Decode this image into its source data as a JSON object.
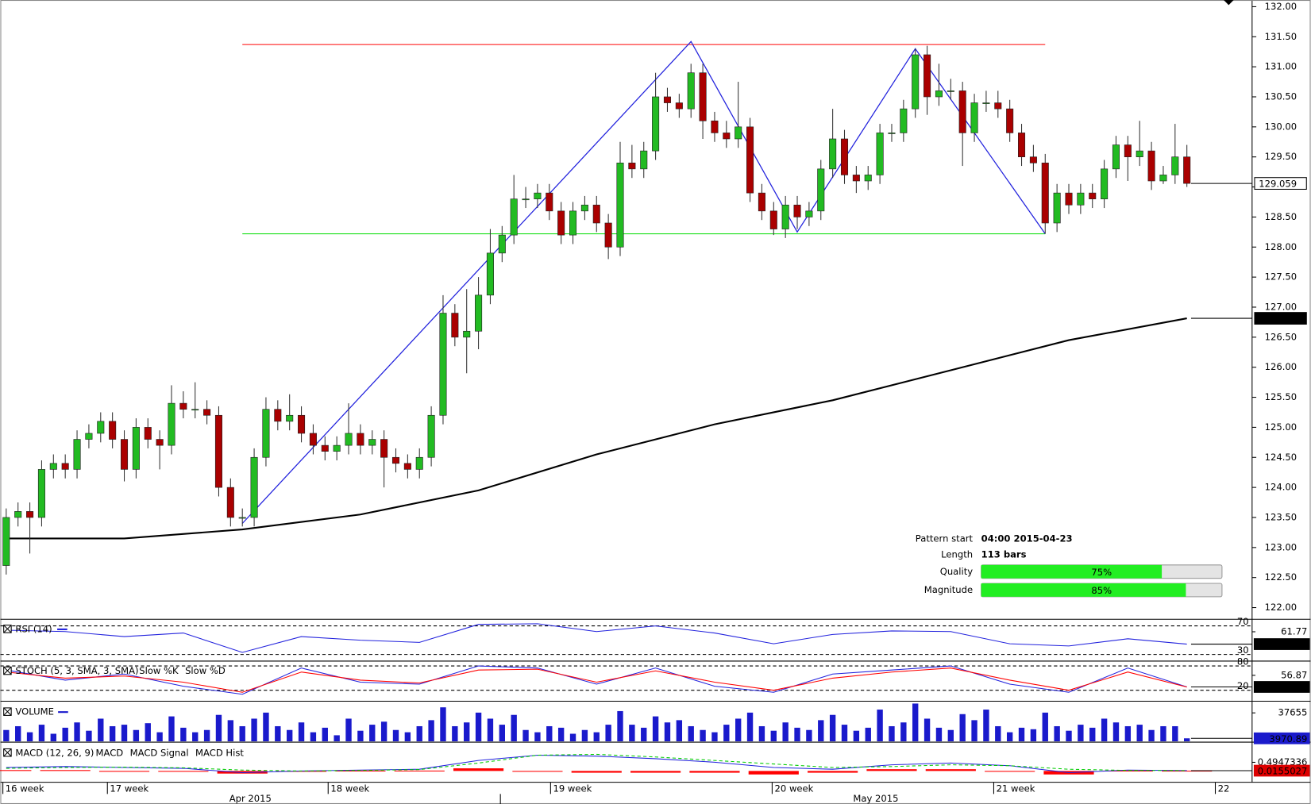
{
  "chart_data": {
    "type": "candlestick",
    "ylim": [
      122,
      132
    ],
    "yticks": [
      {
        "value": 122,
        "label": "122.00"
      },
      {
        "value": 122.5,
        "label": "122.50"
      },
      {
        "value": 123,
        "label": "123.00"
      },
      {
        "value": 123.5,
        "label": "123.50"
      },
      {
        "value": 124,
        "label": "124.00"
      },
      {
        "value": 124.5,
        "label": "124.50"
      },
      {
        "value": 125,
        "label": "125.00"
      },
      {
        "value": 125.5,
        "label": "125.50"
      },
      {
        "value": 126,
        "label": "126.00"
      },
      {
        "value": 126.5,
        "label": "126.50"
      },
      {
        "value": 127,
        "label": "127.00"
      },
      {
        "value": 127.5,
        "label": "127.50"
      },
      {
        "value": 128,
        "label": "128.00"
      },
      {
        "value": 128.5,
        "label": "128.50"
      },
      {
        "value": 129,
        "label": "129.00"
      },
      {
        "value": 129.5,
        "label": "129.50"
      },
      {
        "value": 130,
        "label": "130.00"
      },
      {
        "value": 130.5,
        "label": "130.50"
      },
      {
        "value": 131,
        "label": "131.00"
      },
      {
        "value": 131.5,
        "label": "131.50"
      },
      {
        "value": 132,
        "label": "132.00"
      }
    ],
    "up_color": "#22bb22",
    "down_color": "#aa0000",
    "open": [
      122.7,
      123.5,
      123.6,
      123.5,
      124.3,
      124.4,
      124.3,
      124.8,
      124.9,
      125.1,
      124.8,
      124.3,
      125.0,
      124.8,
      124.7,
      125.4,
      125.3,
      125.3,
      125.2,
      124.0,
      123.5,
      123.5,
      124.5,
      125.3,
      125.1,
      125.2,
      124.9,
      124.7,
      124.6,
      124.7,
      124.9,
      124.7,
      124.8,
      124.5,
      124.4,
      124.3,
      124.5,
      125.2,
      126.9,
      126.5,
      126.6,
      127.2,
      127.9,
      128.2,
      128.8,
      128.8,
      128.9,
      128.6,
      128.2,
      128.6,
      128.7,
      128.4,
      128.0,
      129.4,
      129.3,
      129.6,
      130.5,
      130.4,
      130.3,
      130.9,
      130.1,
      129.9,
      129.8,
      130.0,
      128.9,
      128.6,
      128.3,
      128.7,
      128.5,
      128.6,
      129.3,
      129.8,
      129.2,
      129.1,
      129.2,
      129.9,
      129.9,
      130.3,
      131.2,
      130.5,
      130.6,
      130.6,
      129.9,
      130.4,
      130.4,
      130.3,
      129.9,
      129.5,
      129.4,
      128.4,
      128.9,
      128.7,
      128.9,
      128.8,
      129.3,
      129.7,
      129.5,
      129.6,
      129.1,
      129.2,
      129.5
    ],
    "high": [
      123.65,
      123.75,
      123.75,
      124.45,
      124.55,
      124.55,
      124.95,
      125.05,
      125.25,
      125.25,
      124.95,
      125.15,
      125.15,
      124.95,
      125.7,
      125.6,
      125.75,
      125.45,
      125.35,
      124.15,
      123.65,
      124.65,
      125.5,
      125.45,
      125.55,
      125.35,
      125.05,
      124.85,
      124.85,
      125.4,
      125.05,
      124.95,
      124.95,
      124.65,
      124.55,
      124.65,
      125.35,
      127.2,
      127.05,
      127.3,
      127.5,
      128.3,
      128.35,
      129.2,
      129.0,
      129.05,
      129.05,
      128.75,
      128.75,
      128.85,
      128.85,
      128.55,
      129.75,
      129.7,
      129.75,
      130.9,
      130.65,
      130.55,
      131.05,
      131.05,
      130.25,
      130.1,
      130.75,
      130.15,
      129.05,
      128.75,
      128.85,
      128.85,
      128.75,
      129.45,
      130.3,
      129.95,
      129.35,
      129.35,
      130.05,
      130.05,
      130.45,
      131.3,
      131.35,
      131.05,
      130.8,
      130.75,
      130.55,
      130.6,
      130.6,
      130.45,
      130.05,
      129.7,
      129.55,
      129.05,
      129.05,
      129.05,
      129.05,
      129.45,
      129.85,
      129.85,
      130.1,
      129.75,
      129.35,
      130.05,
      129.7
    ],
    "low": [
      122.55,
      123.35,
      122.9,
      123.35,
      124.15,
      124.15,
      124.15,
      124.65,
      124.75,
      124.65,
      124.1,
      124.15,
      124.65,
      124.3,
      124.55,
      125.15,
      125.15,
      125.05,
      123.85,
      123.35,
      123.35,
      123.35,
      124.35,
      124.95,
      124.95,
      124.75,
      124.55,
      124.45,
      124.45,
      124.55,
      124.55,
      124.55,
      124.0,
      124.25,
      124.15,
      124.15,
      124.35,
      125.05,
      126.35,
      125.9,
      126.3,
      127.05,
      127.75,
      128.05,
      128.65,
      128.65,
      128.45,
      128.05,
      128.05,
      128.45,
      128.25,
      127.8,
      127.85,
      129.15,
      129.15,
      129.45,
      130.25,
      130.15,
      130.15,
      129.8,
      129.75,
      129.65,
      129.65,
      128.75,
      128.45,
      128.2,
      128.15,
      128.3,
      128.35,
      128.45,
      129.15,
      129.05,
      128.9,
      128.95,
      129.05,
      129.75,
      129.75,
      130.15,
      130.2,
      130.35,
      130.45,
      129.35,
      129.75,
      130.25,
      130.15,
      129.75,
      129.35,
      129.25,
      128.22,
      128.25,
      128.55,
      128.55,
      128.65,
      128.65,
      129.15,
      129.1,
      129.35,
      128.95,
      129.05,
      129.05,
      129.0
    ],
    "close": [
      123.5,
      123.6,
      123.5,
      124.3,
      124.4,
      124.3,
      124.8,
      124.9,
      125.1,
      124.8,
      124.3,
      125.0,
      124.8,
      124.7,
      125.4,
      125.3,
      125.3,
      125.2,
      124.0,
      123.5,
      123.5,
      124.5,
      125.3,
      125.1,
      125.2,
      124.9,
      124.7,
      124.6,
      124.7,
      124.9,
      124.7,
      124.8,
      124.5,
      124.4,
      124.3,
      124.5,
      125.2,
      126.9,
      126.5,
      126.6,
      127.2,
      127.9,
      128.2,
      128.8,
      128.8,
      128.9,
      128.6,
      128.2,
      128.6,
      128.7,
      128.4,
      128.0,
      129.4,
      129.3,
      129.6,
      130.5,
      130.4,
      130.3,
      130.9,
      130.1,
      129.9,
      129.8,
      130.0,
      128.9,
      128.6,
      128.3,
      128.7,
      128.5,
      128.6,
      129.3,
      129.8,
      129.2,
      129.1,
      129.2,
      129.9,
      129.9,
      130.3,
      131.2,
      130.5,
      130.6,
      130.6,
      129.9,
      130.4,
      130.4,
      130.3,
      129.9,
      129.5,
      129.4,
      128.4,
      128.9,
      128.7,
      128.9,
      128.8,
      129.3,
      129.7,
      129.5,
      129.6,
      129.1,
      129.2,
      129.5,
      129.059
    ],
    "ma": {
      "color": "#000000",
      "x": [
        0,
        10,
        20,
        30,
        40,
        50,
        60,
        70,
        80,
        90,
        100
      ],
      "values": [
        123.15,
        123.15,
        123.3,
        123.55,
        123.95,
        124.55,
        125.05,
        125.45,
        125.95,
        126.45,
        126.814
      ]
    },
    "pattern": {
      "resistance": 131.37,
      "support": 128.22,
      "start": 20,
      "end": 88,
      "resistance_color": "#ff0000",
      "support_color": "#00dd00",
      "zigzag_color": "#2222dd",
      "zigzag": {
        "x": [
          20,
          58,
          67,
          77,
          88
        ],
        "values": [
          123.4,
          131.42,
          128.25,
          131.3,
          128.22
        ]
      },
      "pattern_start": {
        "label": "Pattern start",
        "text": "04:00 2015-04-23"
      },
      "length": {
        "label": "Length",
        "text": "113 bars"
      },
      "quality": {
        "label": "Quality",
        "value": 75,
        "value_label": "75%"
      },
      "magnitude": {
        "label": "Magnitude",
        "value": 85,
        "value_label": "85%"
      }
    },
    "x_labels": [
      "16 week",
      "17 week",
      "18 week",
      "19 week",
      "20 week",
      "21 week",
      "22"
    ],
    "month_labels": [
      "Apr 2015",
      "May 2015"
    ],
    "indicator_x": [
      0,
      5,
      10,
      15,
      20,
      25,
      30,
      35,
      40,
      45,
      50,
      55,
      60,
      65,
      70,
      75,
      80,
      85,
      90,
      95,
      100
    ],
    "rsi": {
      "title": "RSI (14)",
      "color": "#2222dd",
      "ylim": [
        22,
        78
      ],
      "levels": [
        70,
        30
      ],
      "yticks": [
        61.77
      ],
      "values": [
        64,
        62,
        55,
        60,
        33,
        55,
        50,
        47,
        72,
        73,
        62,
        70,
        60,
        45,
        58,
        63,
        62,
        45,
        42,
        52,
        44.53507
      ]
    },
    "stoch": {
      "title": "STOCH (5, 3, SMA, 3, SMA)",
      "ylim": [
        -5,
        90
      ],
      "levels": [
        80,
        20
      ],
      "yticks": [
        56.87
      ],
      "series": [
        {
          "name": "Slow %K",
          "color": "#2222dd",
          "values": [
            70,
            45,
            60,
            30,
            10,
            75,
            40,
            35,
            80,
            75,
            35,
            75,
            30,
            15,
            60,
            70,
            80,
            35,
            15,
            75,
            28.21753
          ]
        },
        {
          "name": "Slow %D",
          "color": "#ff0000",
          "values": [
            65,
            50,
            55,
            40,
            15,
            65,
            45,
            38,
            70,
            72,
            40,
            68,
            40,
            20,
            50,
            65,
            75,
            45,
            20,
            65,
            28
          ]
        }
      ]
    },
    "volume": {
      "title": "VOLUME",
      "color": "#1a1acc",
      "ylim": [
        0,
        52000
      ],
      "yticks": [
        37655
      ],
      "values": [
        15000,
        20000,
        12000,
        22000,
        10000,
        18000,
        25000,
        14000,
        30000,
        20000,
        22000,
        15000,
        24000,
        12000,
        33000,
        18000,
        12000,
        15000,
        35000,
        28000,
        20000,
        30000,
        38000,
        20000,
        15000,
        25000,
        12000,
        18000,
        8000,
        30000,
        14000,
        22000,
        26000,
        15000,
        12000,
        20000,
        28000,
        45000,
        20000,
        25000,
        38000,
        30000,
        22000,
        35000,
        15000,
        12000,
        20000,
        18000,
        10000,
        15000,
        12000,
        22000,
        40000,
        22000,
        18000,
        33000,
        25000,
        28000,
        20000,
        15000,
        12000,
        22000,
        30000,
        38000,
        20000,
        14000,
        25000,
        18000,
        15000,
        28000,
        35000,
        22000,
        14000,
        18000,
        42000,
        20000,
        25000,
        50000,
        30000,
        18000,
        15000,
        36000,
        28000,
        42000,
        20000,
        12000,
        18000,
        16000,
        38000,
        20000,
        14000,
        22000,
        18000,
        30000,
        25000,
        20000,
        22000,
        15000,
        20000,
        20000,
        3970.89
      ]
    },
    "macd": {
      "title": "MACD (12, 26, 9)",
      "ylim": [
        -0.6,
        1.6
      ],
      "yticks": [
        0.4947336
      ],
      "series": [
        {
          "name": "MACD",
          "color": "#2222dd",
          "values": [
            0.2,
            0.25,
            0.2,
            0.15,
            -0.1,
            0.0,
            0.05,
            0.1,
            0.6,
            0.9,
            0.85,
            0.7,
            0.5,
            0.2,
            0.1,
            0.35,
            0.45,
            0.3,
            -0.1,
            0.05,
            0.02
          ]
        },
        {
          "name": "MACD Signal",
          "color": "#00cc00",
          "values": [
            0.15,
            0.2,
            0.22,
            0.18,
            0.05,
            0.0,
            0.03,
            0.08,
            0.45,
            0.9,
            0.95,
            0.8,
            0.6,
            0.4,
            0.2,
            0.25,
            0.35,
            0.3,
            0.1,
            0.03,
            0.02
          ]
        },
        {
          "name": "MACD Hist",
          "color": "#ff0000",
          "values": [
            0.05,
            0.05,
            -0.02,
            -0.03,
            -0.15,
            0.0,
            0.02,
            0.02,
            0.15,
            0.0,
            -0.1,
            -0.1,
            -0.1,
            -0.2,
            -0.1,
            0.1,
            0.1,
            0.0,
            -0.2,
            0.02,
            0.0155027
          ]
        }
      ]
    }
  }
}
